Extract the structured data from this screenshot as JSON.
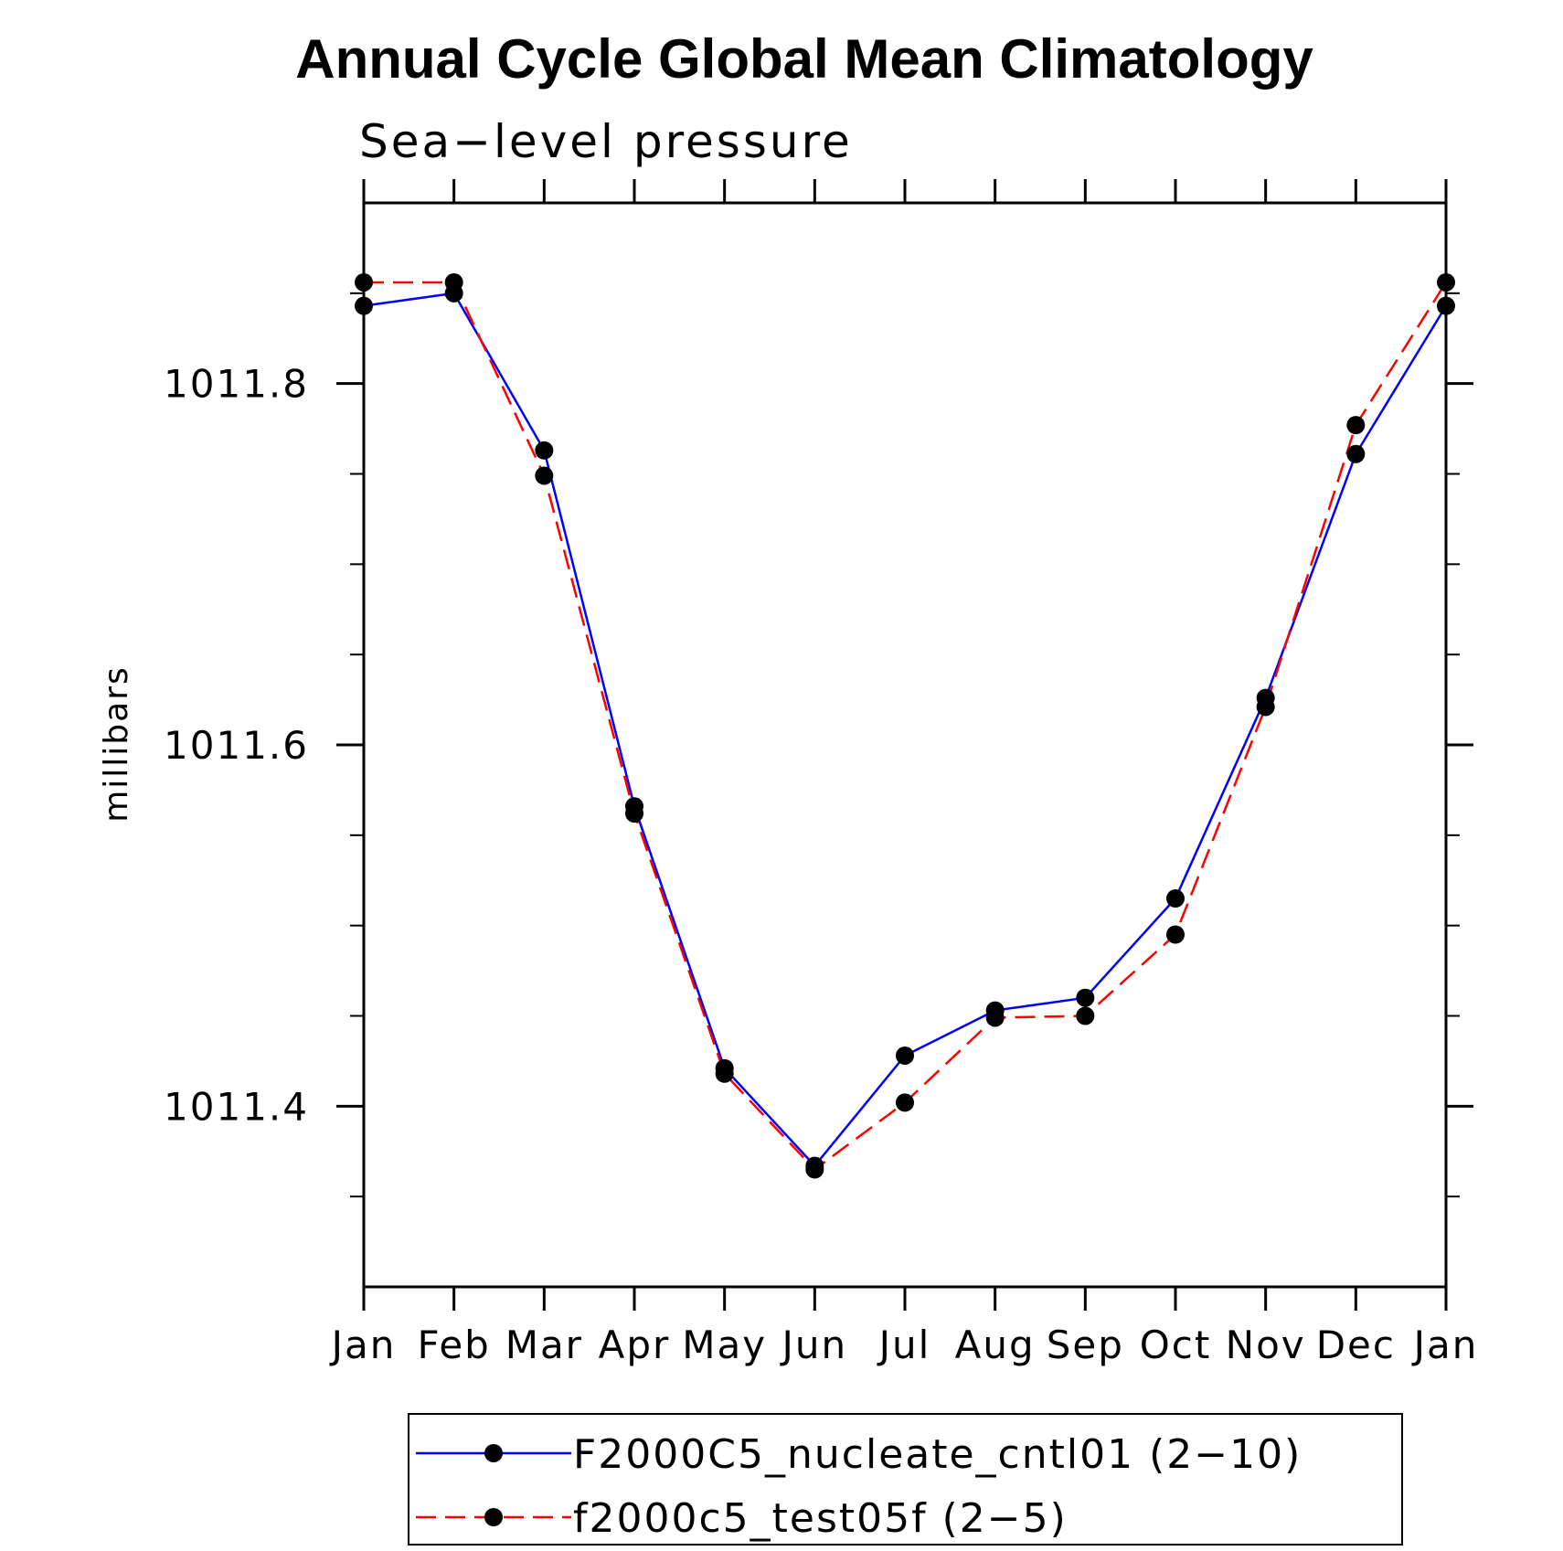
{
  "chart_data": {
    "type": "line",
    "title": "Annual Cycle Global Mean Climatology",
    "subtitle": "Sea−level pressure",
    "ylabel": "millibars",
    "xlabel": "",
    "categories": [
      "Jan",
      "Feb",
      "Mar",
      "Apr",
      "May",
      "Jun",
      "Jul",
      "Aug",
      "Sep",
      "Oct",
      "Nov",
      "Dec",
      "Jan"
    ],
    "ylim": [
      1011.3,
      1011.9
    ],
    "yticks_major": [
      1011.4,
      1011.6,
      1011.8
    ],
    "ytick_labels": [
      "1011.4",
      "1011.6",
      "1011.8"
    ],
    "yticks_minor": [
      1011.35,
      1011.45,
      1011.5,
      1011.55,
      1011.65,
      1011.7,
      1011.75,
      1011.85
    ],
    "grid": false,
    "legend_position": "bottom",
    "series": [
      {
        "name": "F2000C5_nucleate_cntl01 (2−10)",
        "color": "#0000ff",
        "dash": "solid",
        "values": [
          1011.843,
          1011.85,
          1011.763,
          1011.566,
          1011.421,
          1011.367,
          1011.428,
          1011.453,
          1011.46,
          1011.515,
          1011.626,
          1011.761,
          1011.843
        ]
      },
      {
        "name": "f2000c5_test05f (2−5)",
        "color": "#ff0000",
        "dash": "dashed",
        "values": [
          1011.856,
          1011.856,
          1011.749,
          1011.562,
          1011.418,
          1011.365,
          1011.402,
          1011.449,
          1011.45,
          1011.495,
          1011.621,
          1011.777,
          1011.856
        ]
      }
    ],
    "marker_color": "#000000"
  }
}
